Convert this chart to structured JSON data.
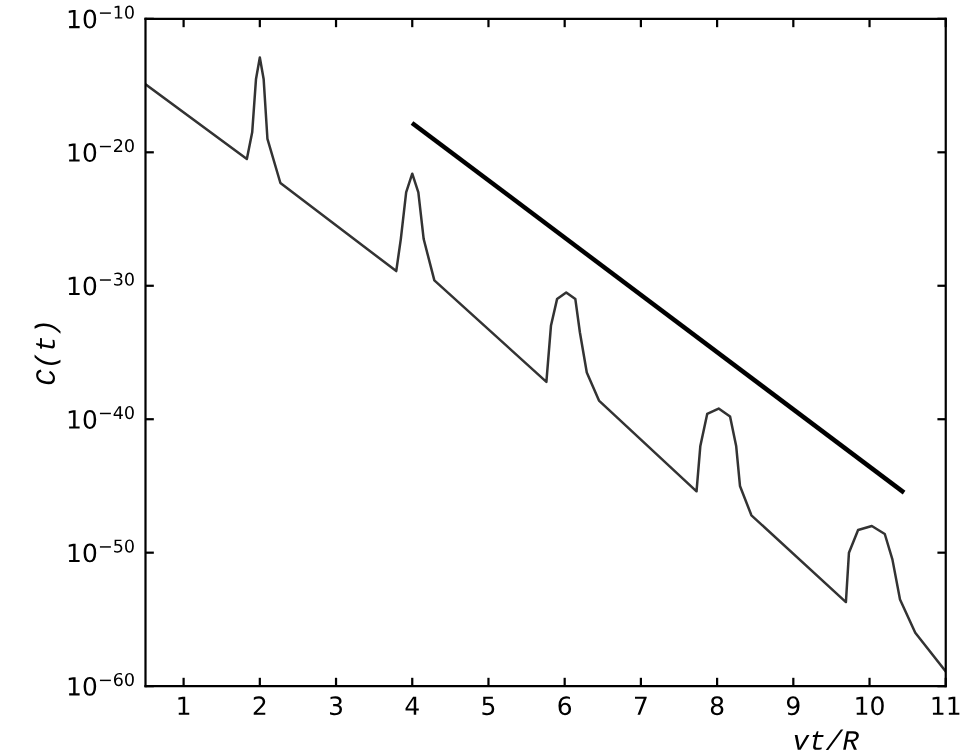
{
  "chart_data": {
    "type": "line",
    "xlabel": "vt/R",
    "ylabel": "C(t)",
    "log": "y",
    "xlim": [
      0.5,
      11
    ],
    "xticks": [
      1,
      2,
      3,
      4,
      5,
      6,
      7,
      8,
      9,
      10,
      11
    ],
    "ylim": [
      1e-60,
      1e-10
    ],
    "yticks": [
      {
        "value": 1e-60,
        "label": "10$^{−60}$"
      },
      {
        "value": 1e-50,
        "label": "10$^{−50}$"
      },
      {
        "value": 1e-40,
        "label": "10$^{−40}$"
      },
      {
        "value": 1e-30,
        "label": "10$^{−30}$"
      },
      {
        "value": 1e-20,
        "label": "10$^{−20}$"
      },
      {
        "value": 1e-10,
        "label": "10$^{−10}$"
      }
    ],
    "grid": false,
    "legend": false,
    "marker": "none",
    "line_style": "solid",
    "series": [
      {
        "color": "#333333",
        "x": [
          0.5,
          1.83,
          1.9,
          1.95,
          2.0,
          2.05,
          2.1,
          2.27,
          3.79,
          3.85,
          3.92,
          4.0,
          4.08,
          4.15,
          4.29,
          5.76,
          5.82,
          5.9,
          6.02,
          6.14,
          6.2,
          6.29,
          6.45,
          7.73,
          7.78,
          7.87,
          8.02,
          8.17,
          8.25,
          8.3,
          8.45,
          9.69,
          9.73,
          9.85,
          10.03,
          10.2,
          10.3,
          10.4,
          10.6,
          11.0
        ],
        "values": [
          1.26e-15,
          3.16e-21,
          3.16e-19,
          3.16e-15,
          1.26e-13,
          3.16e-15,
          1e-19,
          5e-23,
          1.26e-29,
          3.16e-27,
          1e-23,
          2.51e-22,
          1e-23,
          3.16e-27,
          2.51e-30,
          6.31e-38,
          1e-33,
          1e-31,
          3.16e-31,
          1e-31,
          3.16e-34,
          3.16e-37,
          2.51e-39,
          3.98e-46,
          1e-42,
          2.51e-40,
          6.31e-40,
          1.58e-40,
          1e-42,
          1e-45,
          6.31e-48,
          2e-54,
          1e-50,
          5.01e-49,
          1e-48,
          2.51e-49,
          3.16e-51,
          3.16e-54,
          1e-56,
          1.26e-59
        ]
      },
      {
        "color": "#000000",
        "x": [
          4.02,
          10.43
        ],
        "values": [
          1.26e-18,
          3.98e-46
        ]
      }
    ]
  }
}
